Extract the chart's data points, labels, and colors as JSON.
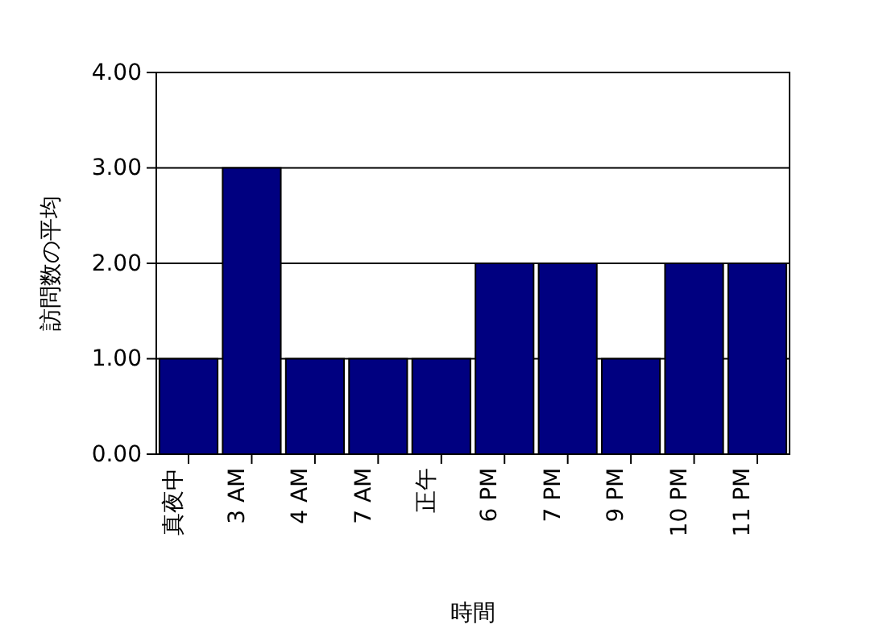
{
  "chart_data": {
    "type": "bar",
    "xlabel": "時間",
    "ylabel": "訪問数の平均",
    "categories": [
      "真夜中",
      "3 AM",
      "4 AM",
      "7 AM",
      "正午",
      "6 PM",
      "7 PM",
      "9 PM",
      "10 PM",
      "11 PM"
    ],
    "values": [
      1,
      3,
      1,
      1,
      1,
      2,
      2,
      1,
      2,
      2
    ],
    "color": "#000080",
    "ylim": [
      0,
      4
    ],
    "yticks": [
      {
        "value": 0,
        "label": "0.00"
      },
      {
        "value": 1,
        "label": "1.00"
      },
      {
        "value": 2,
        "label": "2.00"
      },
      {
        "value": 3,
        "label": "3.00"
      },
      {
        "value": 4,
        "label": "4.00"
      }
    ],
    "grid": "y"
  }
}
